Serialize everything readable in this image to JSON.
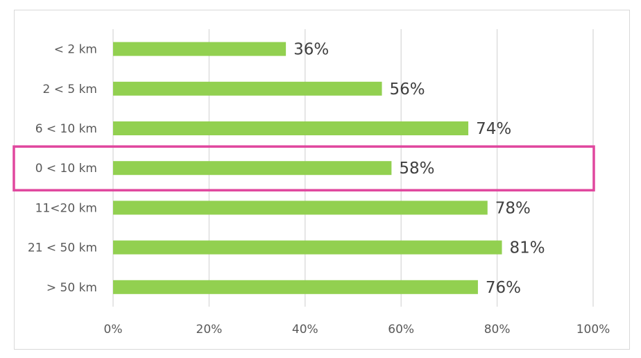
{
  "chart_data": {
    "type": "bar",
    "orientation": "horizontal",
    "categories": [
      "< 2 km",
      "2 < 5 km",
      "6 < 10 km",
      "0 < 10 km",
      "11<20 km",
      "21 < 50 km",
      "> 50 km"
    ],
    "values": [
      36,
      56,
      74,
      58,
      78,
      81,
      76
    ],
    "value_labels": [
      "36%",
      "56%",
      "74%",
      "58%",
      "78%",
      "81%",
      "76%"
    ],
    "xlim": [
      0,
      100
    ],
    "xticks": [
      0,
      20,
      40,
      60,
      80,
      100
    ],
    "xtick_labels": [
      "0%",
      "20%",
      "40%",
      "60%",
      "80%",
      "100%"
    ],
    "grid": "vertical",
    "legend": "none",
    "highlighted_category": "0 < 10 km",
    "colors": {
      "bar": "#92d050",
      "highlight_box": "#e0479e",
      "grid": "#d9d9d9"
    }
  }
}
